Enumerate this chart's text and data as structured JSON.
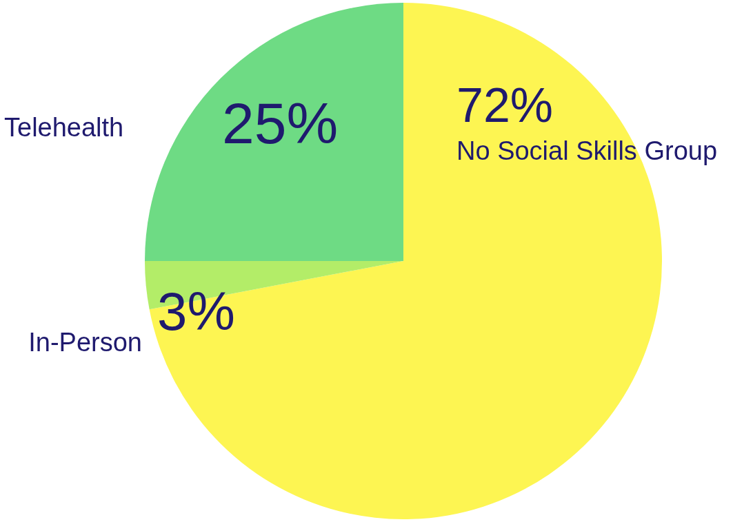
{
  "chart_data": {
    "type": "pie",
    "categories": [
      "No Social Skills Group",
      "In-Person",
      "Telehealth"
    ],
    "values": [
      72,
      3,
      25
    ],
    "colors": [
      "#fdf552",
      "#b3ed68",
      "#6edb84"
    ],
    "value_labels": [
      "72%",
      "3%",
      "25%"
    ],
    "legend": false
  }
}
